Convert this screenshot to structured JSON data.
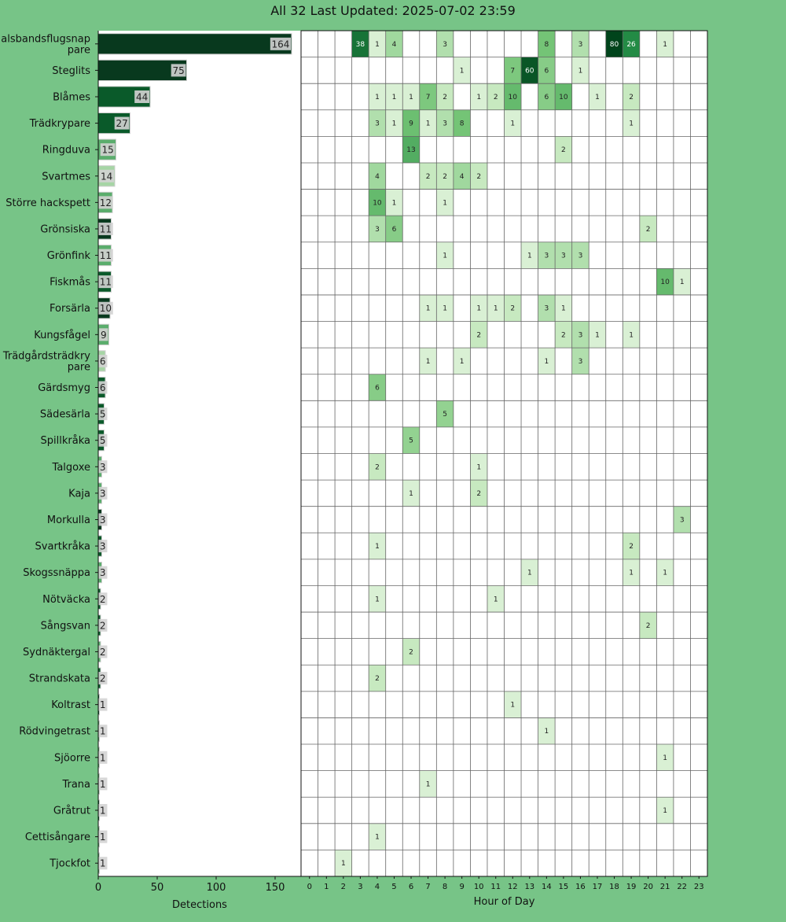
{
  "title": "All 32 Last Updated: 2025-07-02 23:59",
  "colors": {
    "background": "#77c487",
    "highlight_hour": "#f3f31a",
    "bar_label_bg": "#d3d3d3",
    "grid_line": "#666666"
  },
  "chart_data": [
    {
      "type": "bar",
      "orientation": "horizontal",
      "xlabel": "Detections",
      "xlim": [
        0,
        172
      ],
      "xticks": [
        0,
        50,
        100,
        150
      ],
      "categories": [
        "Halsbandsflugsnap\npare",
        "Steglits",
        "Blåmes",
        "Trädkrypare",
        "Ringduva",
        "Svartmes",
        "Större hackspett",
        "Grönsiska",
        "Grönfink",
        "Fiskmås",
        "Forsärla",
        "Kungsfågel",
        "Trädgårdsträdkry\npare",
        "Gärdsmyg",
        "Sädesärla",
        "Spillkråka",
        "Talgoxe",
        "Kaja",
        "Morkulla",
        "Svartkråka",
        "Skogssnäppa",
        "Nötväcka",
        "Sångsvan",
        "Sydnäktergal",
        "Strandskata",
        "Koltrast",
        "Rödvingetrast",
        "Sjöorre",
        "Trana",
        "Gråtrut",
        "Cettisångare",
        "Tjockfot"
      ],
      "values": [
        164,
        75,
        44,
        27,
        15,
        14,
        12,
        11,
        11,
        11,
        10,
        9,
        6,
        6,
        5,
        5,
        3,
        3,
        3,
        3,
        3,
        2,
        2,
        2,
        2,
        1,
        1,
        1,
        1,
        1,
        1,
        1
      ],
      "bar_colors": [
        "#08391e",
        "#08391e",
        "#0a5a2a",
        "#0a5a2a",
        "#5aad6c",
        "#a6d5a5",
        "#5aad6c",
        "#08391e",
        "#5aad6c",
        "#0a5a2a",
        "#08391e",
        "#5aad6c",
        "#a6d5a5",
        "#0a5a2a",
        "#0a5a2a",
        "#0a5a2a",
        "#5aad6c",
        "#5aad6c",
        "#08391e",
        "#0a5a2a",
        "#5aad6c",
        "#0a5a2a",
        "#0a5a2a",
        "#5aad6c",
        "#0a5a2a",
        "#0a5a2a",
        "#5aad6c",
        "#5aad6c",
        "#5aad6c",
        "#0a5a2a",
        "#5aad6c",
        "#5aad6c"
      ]
    },
    {
      "type": "heatmap",
      "xlabel": "Hour of Day",
      "hours": [
        "0",
        "1",
        "2",
        "3",
        "4",
        "5",
        "6",
        "7",
        "8",
        "9",
        "10",
        "11",
        "12",
        "13",
        "14",
        "15",
        "16",
        "17",
        "18",
        "19",
        "20",
        "21",
        "22",
        "23"
      ],
      "highlight_hour": "23",
      "color_scale": "greens",
      "rows": [
        {
          "species": "Halsbandsflugsnappare",
          "cells": {
            "3": 38,
            "4": 1,
            "5": 4,
            "8": 3,
            "14": 8,
            "16": 3,
            "18": 80,
            "19": 26,
            "21": 1
          }
        },
        {
          "species": "Steglits",
          "cells": {
            "9": 1,
            "12": 7,
            "13": 60,
            "14": 6,
            "16": 1
          }
        },
        {
          "species": "Blåmes",
          "cells": {
            "4": 1,
            "5": 1,
            "6": 1,
            "7": 7,
            "8": 2,
            "10": 1,
            "11": 2,
            "12": 10,
            "14": 6,
            "15": 10,
            "17": 1,
            "19": 2
          }
        },
        {
          "species": "Trädkrypare",
          "cells": {
            "4": 3,
            "5": 1,
            "6": 9,
            "7": 1,
            "8": 3,
            "9": 8,
            "12": 1,
            "19": 1
          }
        },
        {
          "species": "Ringduva",
          "cells": {
            "6": 13,
            "15": 2
          }
        },
        {
          "species": "Svartmes",
          "cells": {
            "4": 4,
            "7": 2,
            "8": 2,
            "9": 4,
            "10": 2
          }
        },
        {
          "species": "Större hackspett",
          "cells": {
            "4": 10,
            "5": 1,
            "8": 1
          }
        },
        {
          "species": "Grönsiska",
          "cells": {
            "4": 3,
            "5": 6,
            "20": 2
          }
        },
        {
          "species": "Grönfink",
          "cells": {
            "8": 1,
            "13": 1,
            "14": 3,
            "15": 3,
            "16": 3
          }
        },
        {
          "species": "Fiskmås",
          "cells": {
            "21": 10,
            "22": 1
          }
        },
        {
          "species": "Forsärla",
          "cells": {
            "7": 1,
            "8": 1,
            "10": 1,
            "11": 1,
            "12": 2,
            "14": 3,
            "15": 1
          }
        },
        {
          "species": "Kungsfågel",
          "cells": {
            "10": 2,
            "15": 2,
            "16": 3,
            "17": 1,
            "19": 1
          }
        },
        {
          "species": "Trädgårdsträdkrypare",
          "cells": {
            "7": 1,
            "9": 1,
            "14": 1,
            "16": 3
          }
        },
        {
          "species": "Gärdsmyg",
          "cells": {
            "4": 6
          }
        },
        {
          "species": "Sädesärla",
          "cells": {
            "8": 5
          }
        },
        {
          "species": "Spillkråka",
          "cells": {
            "6": 5
          }
        },
        {
          "species": "Talgoxe",
          "cells": {
            "4": 2,
            "10": 1
          }
        },
        {
          "species": "Kaja",
          "cells": {
            "6": 1,
            "10": 2
          }
        },
        {
          "species": "Morkulla",
          "cells": {
            "22": 3
          }
        },
        {
          "species": "Svartkråka",
          "cells": {
            "4": 1,
            "19": 2
          }
        },
        {
          "species": "Skogssnäppa",
          "cells": {
            "13": 1,
            "19": 1,
            "21": 1
          }
        },
        {
          "species": "Nötväcka",
          "cells": {
            "4": 1,
            "11": 1
          }
        },
        {
          "species": "Sångsvan",
          "cells": {
            "20": 2
          }
        },
        {
          "species": "Sydnäktergal",
          "cells": {
            "6": 2
          }
        },
        {
          "species": "Strandskata",
          "cells": {
            "4": 2
          }
        },
        {
          "species": "Koltrast",
          "cells": {
            "12": 1
          }
        },
        {
          "species": "Rödvingetrast",
          "cells": {
            "14": 1
          }
        },
        {
          "species": "Sjöorre",
          "cells": {
            "21": 1
          }
        },
        {
          "species": "Trana",
          "cells": {
            "7": 1
          }
        },
        {
          "species": "Gråtrut",
          "cells": {
            "21": 1
          }
        },
        {
          "species": "Cettisångare",
          "cells": {
            "4": 1
          }
        },
        {
          "species": "Tjockfot",
          "cells": {
            "2": 1
          }
        }
      ]
    }
  ]
}
